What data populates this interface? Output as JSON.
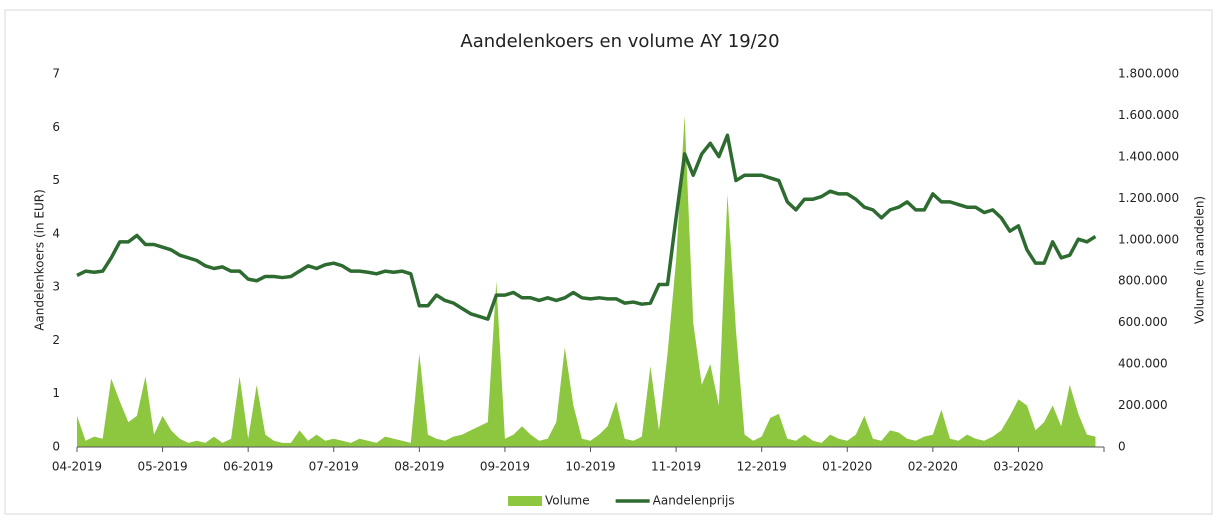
{
  "chart_data": {
    "type": "area-line",
    "title": "Aandelenkoers en volume AY 19/20",
    "ylabel": "Aandelenkoers (in EUR)",
    "y2label": "Volume (in aandelen)",
    "categories": [
      "04-2019",
      null,
      null,
      null,
      null,
      null,
      null,
      null,
      null,
      null,
      "05-2019",
      null,
      null,
      null,
      null,
      null,
      null,
      null,
      null,
      null,
      "06-2019",
      null,
      null,
      null,
      null,
      null,
      null,
      null,
      null,
      null,
      "07-2019",
      null,
      null,
      null,
      null,
      null,
      null,
      null,
      null,
      null,
      "08-2019",
      null,
      null,
      null,
      null,
      null,
      null,
      null,
      null,
      null,
      "09-2019",
      null,
      null,
      null,
      null,
      null,
      null,
      null,
      null,
      null,
      "10-2019",
      null,
      null,
      null,
      null,
      null,
      null,
      null,
      null,
      null,
      "11-2019",
      null,
      null,
      null,
      null,
      null,
      null,
      null,
      null,
      null,
      "12-2019",
      null,
      null,
      null,
      null,
      null,
      null,
      null,
      null,
      null,
      "01-2020",
      null,
      null,
      null,
      null,
      null,
      null,
      null,
      null,
      null,
      "02-2020",
      null,
      null,
      null,
      null,
      null,
      null,
      null,
      null,
      null,
      "03-2020",
      null,
      null,
      null,
      null,
      null,
      null,
      null,
      null,
      null
    ],
    "series": [
      {
        "name": "Volume",
        "kind": "area",
        "axis": "y2",
        "color": "#8dc63f",
        "values": [
          150000,
          30000,
          50000,
          40000,
          330000,
          220000,
          120000,
          150000,
          340000,
          60000,
          150000,
          80000,
          40000,
          20000,
          30000,
          20000,
          50000,
          20000,
          40000,
          340000,
          40000,
          300000,
          60000,
          30000,
          20000,
          20000,
          80000,
          30000,
          60000,
          30000,
          40000,
          30000,
          20000,
          40000,
          30000,
          20000,
          50000,
          40000,
          30000,
          20000,
          450000,
          60000,
          40000,
          30000,
          50000,
          60000,
          80000,
          100000,
          120000,
          800000,
          40000,
          60000,
          100000,
          60000,
          30000,
          40000,
          120000,
          480000,
          200000,
          40000,
          30000,
          60000,
          100000,
          220000,
          40000,
          30000,
          50000,
          390000,
          80000,
          450000,
          900000,
          1600000,
          600000,
          300000,
          400000,
          200000,
          1220000,
          560000,
          60000,
          30000,
          50000,
          140000,
          160000,
          40000,
          30000,
          60000,
          30000,
          20000,
          60000,
          40000,
          30000,
          60000,
          150000,
          40000,
          30000,
          80000,
          70000,
          40000,
          30000,
          50000,
          60000,
          180000,
          40000,
          30000,
          60000,
          40000,
          30000,
          50000,
          80000,
          150000,
          230000,
          200000,
          80000,
          120000,
          200000,
          100000,
          300000,
          160000,
          60000,
          50000
        ]
      },
      {
        "name": "Aandelenprijs",
        "kind": "line",
        "color": "#2e6b30",
        "values": [
          3.22,
          3.3,
          3.28,
          3.3,
          3.55,
          3.85,
          3.85,
          3.97,
          3.8,
          3.8,
          3.75,
          3.7,
          3.6,
          3.55,
          3.5,
          3.4,
          3.35,
          3.38,
          3.3,
          3.3,
          3.15,
          3.12,
          3.2,
          3.2,
          3.18,
          3.2,
          3.3,
          3.4,
          3.35,
          3.42,
          3.45,
          3.4,
          3.3,
          3.3,
          3.28,
          3.25,
          3.3,
          3.28,
          3.3,
          3.25,
          2.65,
          2.65,
          2.85,
          2.75,
          2.7,
          2.6,
          2.5,
          2.45,
          2.4,
          2.85,
          2.85,
          2.9,
          2.8,
          2.8,
          2.75,
          2.8,
          2.75,
          2.8,
          2.9,
          2.8,
          2.78,
          2.8,
          2.78,
          2.78,
          2.7,
          2.72,
          2.68,
          2.7,
          3.05,
          3.05,
          4.3,
          5.5,
          5.1,
          5.5,
          5.7,
          5.45,
          5.85,
          5.0,
          5.1,
          5.1,
          5.1,
          5.05,
          5.0,
          4.6,
          4.45,
          4.65,
          4.65,
          4.7,
          4.8,
          4.75,
          4.75,
          4.65,
          4.5,
          4.45,
          4.3,
          4.45,
          4.5,
          4.6,
          4.45,
          4.45,
          4.75,
          4.6,
          4.6,
          4.55,
          4.5,
          4.5,
          4.4,
          4.45,
          4.3,
          4.05,
          4.15,
          3.7,
          3.45,
          3.45,
          3.85,
          3.55,
          3.6,
          3.9,
          3.85,
          3.95
        ]
      }
    ],
    "ylim": [
      0,
      7
    ],
    "yticks": [
      0,
      1,
      2,
      3,
      4,
      5,
      6,
      7
    ],
    "y2lim": [
      0,
      1800000
    ],
    "y2ticks": [
      0,
      {
        "value": 200000,
        "label": "200.000"
      },
      {
        "value": 400000,
        "label": "400.000"
      },
      {
        "value": 600000,
        "label": "600.000"
      },
      {
        "value": 800000,
        "label": "800.000"
      },
      {
        "value": 1000000,
        "label": "1.000.000"
      },
      {
        "value": 1200000,
        "label": "1.200.000"
      },
      {
        "value": 1400000,
        "label": "1.400.000"
      },
      {
        "value": 1600000,
        "label": "1.600.000"
      },
      {
        "value": 1800000,
        "label": "1.800.000"
      }
    ],
    "legend": "bottom"
  }
}
